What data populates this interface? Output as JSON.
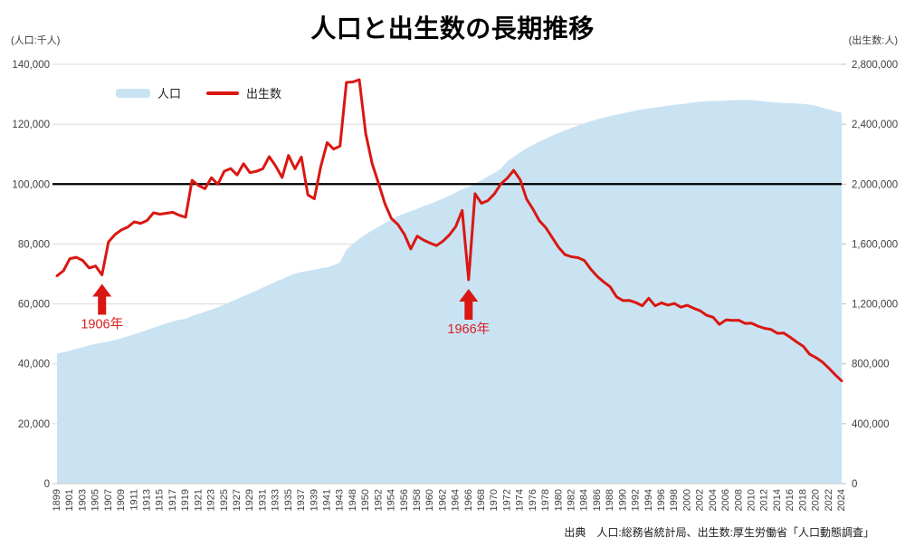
{
  "title": "人口と出生数の長期推移",
  "left_axis_unit": "(人口:千人)",
  "right_axis_unit": "(出生数:人)",
  "legend": {
    "population": "人口",
    "births": "出生数"
  },
  "source": "出典　人口:総務省統計局、出生数:厚生労働省「人口動態調査」",
  "colors": {
    "population_area": "#c9e3f3",
    "births_line": "#da1712",
    "reference_line": "#000000",
    "gridline": "#d9d9d9",
    "axis_text": "#404040",
    "annotation_text": "#d92020"
  },
  "chart_data": {
    "type": "area",
    "title": "人口と出生数の長期推移",
    "left_axis": {
      "label": "(人口:千人)",
      "min": 0,
      "max": 140000,
      "step": 20000
    },
    "right_axis": {
      "label": "(出生数:人)",
      "min": 0,
      "max": 2800000,
      "step": 400000
    },
    "reference_line_left_value": 100000,
    "x_tick_years_shown": "odd years 1899-1943, even years 1948-2024, every 2nd year; no data 1944-1946",
    "years": [
      1899,
      1900,
      1901,
      1902,
      1903,
      1904,
      1905,
      1906,
      1907,
      1908,
      1909,
      1910,
      1911,
      1912,
      1913,
      1914,
      1915,
      1916,
      1917,
      1918,
      1919,
      1920,
      1921,
      1922,
      1923,
      1924,
      1925,
      1926,
      1927,
      1928,
      1929,
      1930,
      1931,
      1932,
      1933,
      1934,
      1935,
      1936,
      1937,
      1938,
      1939,
      1940,
      1941,
      1942,
      1943,
      1947,
      1948,
      1949,
      1950,
      1951,
      1952,
      1953,
      1954,
      1955,
      1956,
      1957,
      1958,
      1959,
      1960,
      1961,
      1962,
      1963,
      1964,
      1965,
      1966,
      1967,
      1968,
      1969,
      1970,
      1971,
      1972,
      1973,
      1974,
      1975,
      1976,
      1977,
      1978,
      1979,
      1980,
      1981,
      1982,
      1983,
      1984,
      1985,
      1986,
      1987,
      1988,
      1989,
      1990,
      1991,
      1992,
      1993,
      1994,
      1995,
      1996,
      1997,
      1998,
      1999,
      2000,
      2001,
      2002,
      2003,
      2004,
      2005,
      2006,
      2007,
      2008,
      2009,
      2010,
      2011,
      2012,
      2013,
      2014,
      2015,
      2016,
      2017,
      2018,
      2019,
      2020,
      2021,
      2022,
      2023,
      2024
    ],
    "series": [
      {
        "name": "人口",
        "axis": "left",
        "style": "area",
        "unit": "千人",
        "values": [
          43404,
          43847,
          44359,
          44964,
          45546,
          46135,
          46620,
          47038,
          47416,
          47965,
          48554,
          49184,
          49852,
          50577,
          51305,
          52039,
          52752,
          53496,
          54134,
          54739,
          55033,
          55963,
          56666,
          57390,
          58119,
          58876,
          59737,
          60741,
          61659,
          62595,
          63461,
          64450,
          65457,
          66434,
          67432,
          68309,
          69254,
          70114,
          70630,
          71013,
          71380,
          71933,
          72218,
          72880,
          73903,
          78101,
          80003,
          81773,
          83200,
          84541,
          85808,
          86981,
          88239,
          89276,
          90172,
          90928,
          91767,
          92641,
          93419,
          94287,
          95181,
          96156,
          97182,
          98275,
          99036,
          100196,
          101331,
          102536,
          103720,
          105145,
          107595,
          109104,
          110573,
          111940,
          113094,
          114165,
          115190,
          116155,
          117060,
          117902,
          118728,
          119536,
          120305,
          121049,
          121660,
          122239,
          122745,
          123205,
          123611,
          124101,
          124567,
          124938,
          125265,
          125570,
          125859,
          126157,
          126472,
          126667,
          126926,
          127316,
          127486,
          127694,
          127787,
          127768,
          127901,
          128033,
          128084,
          128032,
          128057,
          127834,
          127593,
          127414,
          127237,
          127095,
          127042,
          126919,
          126749,
          126555,
          126146,
          125502,
          124947,
          124352,
          123802
        ]
      },
      {
        "name": "出生数",
        "axis": "right",
        "style": "line",
        "unit": "人",
        "values": [
          1387000,
          1421000,
          1502000,
          1511000,
          1490000,
          1440000,
          1453000,
          1394000,
          1614000,
          1663000,
          1694000,
          1713000,
          1748000,
          1738000,
          1757000,
          1808000,
          1799000,
          1805000,
          1812000,
          1792000,
          1779000,
          2026000,
          1991000,
          1969000,
          2043000,
          1999000,
          2086000,
          2104000,
          2061000,
          2136000,
          2077000,
          2085000,
          2103000,
          2183000,
          2121000,
          2044000,
          2191000,
          2102000,
          2181000,
          1928000,
          1902000,
          2116000,
          2277000,
          2234000,
          2254000,
          2679000,
          2682000,
          2697000,
          2338000,
          2138000,
          2005000,
          1868000,
          1770000,
          1731000,
          1665000,
          1567000,
          1653000,
          1626000,
          1606000,
          1589000,
          1619000,
          1660000,
          1717000,
          1824000,
          1361000,
          1936000,
          1872000,
          1890000,
          1934000,
          2001000,
          2039000,
          2092000,
          2030000,
          1901000,
          1833000,
          1755000,
          1709000,
          1643000,
          1577000,
          1529000,
          1515000,
          1509000,
          1490000,
          1432000,
          1383000,
          1347000,
          1314000,
          1247000,
          1222000,
          1223000,
          1209000,
          1188000,
          1238000,
          1187000,
          1207000,
          1192000,
          1203000,
          1178000,
          1191000,
          1171000,
          1154000,
          1124000,
          1111000,
          1063000,
          1093000,
          1090000,
          1091000,
          1070000,
          1071000,
          1051000,
          1037000,
          1030000,
          1004000,
          1006000,
          977000,
          946000,
          918000,
          865000,
          841000,
          812000,
          771000,
          727000,
          686000
        ]
      }
    ],
    "annotations": [
      {
        "year": 1906,
        "label": "1906年"
      },
      {
        "year": 1966,
        "label": "1966年"
      }
    ]
  }
}
